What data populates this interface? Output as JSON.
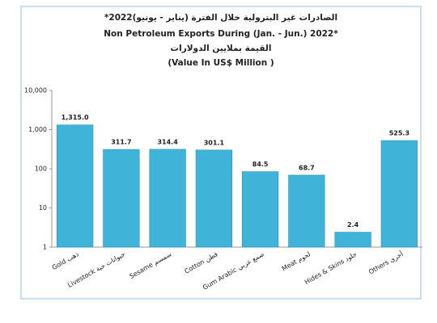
{
  "chart_data": {
    "type": "bar",
    "title": "الصادرات غير البترولية خلال الفترة (يناير - يونيو)2022*",
    "title_en": "Non Petroleum Exports During (Jan. - Jun.) 2022*",
    "subtitle": "القيمة بملايين الدولارات",
    "subtitle_en": "(Value In US$ Million )",
    "categories": [
      "Gold ذهب",
      "Livestock حيوانات حية",
      "Sesame سمسم",
      "Cotton قطن",
      "Gum Arabic صمغ عربي",
      "Meat لحوم",
      "Hides & Skins جلود",
      "Others أخرى"
    ],
    "values": [
      1315.0,
      311.7,
      314.4,
      301.1,
      84.5,
      68.7,
      2.4,
      525.3
    ],
    "value_labels": [
      "1,315.0",
      "311.7",
      "314.4",
      "301.1",
      "84.5",
      "68.7",
      "2.4",
      "525.3"
    ],
    "color": "#3fb3d8",
    "log_scale": true,
    "ylim": [
      1,
      10000
    ],
    "yticks": [
      1,
      10,
      100,
      {
        "value": 1000,
        "label": "1,000"
      },
      {
        "value": 10000,
        "label": "10,000"
      }
    ]
  }
}
